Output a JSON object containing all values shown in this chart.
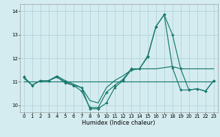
{
  "title": "",
  "xlabel": "Humidex (Indice chaleur)",
  "background_color": "#d4ecf0",
  "grid_color": "#aacdd6",
  "line_color": "#1a7a6e",
  "xlim": [
    -0.5,
    23.5
  ],
  "ylim": [
    9.7,
    14.3
  ],
  "yticks": [
    10,
    11,
    12,
    13,
    14
  ],
  "xticks": [
    0,
    1,
    2,
    3,
    4,
    5,
    6,
    7,
    8,
    9,
    10,
    11,
    12,
    13,
    14,
    15,
    16,
    17,
    18,
    19,
    20,
    21,
    22,
    23
  ],
  "line1_x": [
    0,
    1,
    2,
    3,
    4,
    5,
    6,
    7,
    8,
    9,
    10,
    11,
    12,
    13,
    14,
    15,
    16,
    17,
    18,
    19,
    20,
    21,
    22,
    23
  ],
  "line1_y": [
    11.2,
    10.85,
    11.05,
    11.05,
    11.2,
    11.0,
    10.85,
    10.75,
    9.85,
    9.85,
    10.1,
    10.75,
    11.05,
    11.5,
    11.55,
    12.05,
    13.35,
    13.85,
    13.0,
    11.55,
    10.65,
    10.7,
    10.6,
    11.05
  ],
  "line2_x": [
    0,
    1,
    2,
    3,
    4,
    5,
    6,
    7,
    8,
    9,
    10,
    11,
    12,
    13,
    14,
    15,
    16,
    17,
    18,
    19,
    20,
    21,
    22,
    23
  ],
  "line2_y": [
    11.15,
    10.85,
    11.05,
    11.05,
    11.25,
    11.05,
    10.9,
    10.75,
    10.2,
    10.1,
    10.75,
    11.05,
    11.25,
    11.5,
    11.55,
    11.55,
    11.55,
    11.6,
    11.65,
    11.55,
    11.55,
    11.55,
    11.55,
    11.55
  ],
  "line3_x": [
    0,
    23
  ],
  "line3_y": [
    11.0,
    11.0
  ],
  "line4_x": [
    0,
    1,
    2,
    3,
    4,
    5,
    6,
    7,
    8,
    9,
    10,
    11,
    12,
    13,
    14,
    15,
    16,
    17,
    18,
    19,
    20,
    21,
    22,
    23
  ],
  "line4_y": [
    11.2,
    10.85,
    11.05,
    11.05,
    11.2,
    10.95,
    10.85,
    10.6,
    9.9,
    9.9,
    10.55,
    10.85,
    11.1,
    11.55,
    11.55,
    12.1,
    13.35,
    13.85,
    11.6,
    10.65,
    10.65,
    10.7,
    10.6,
    11.05
  ]
}
